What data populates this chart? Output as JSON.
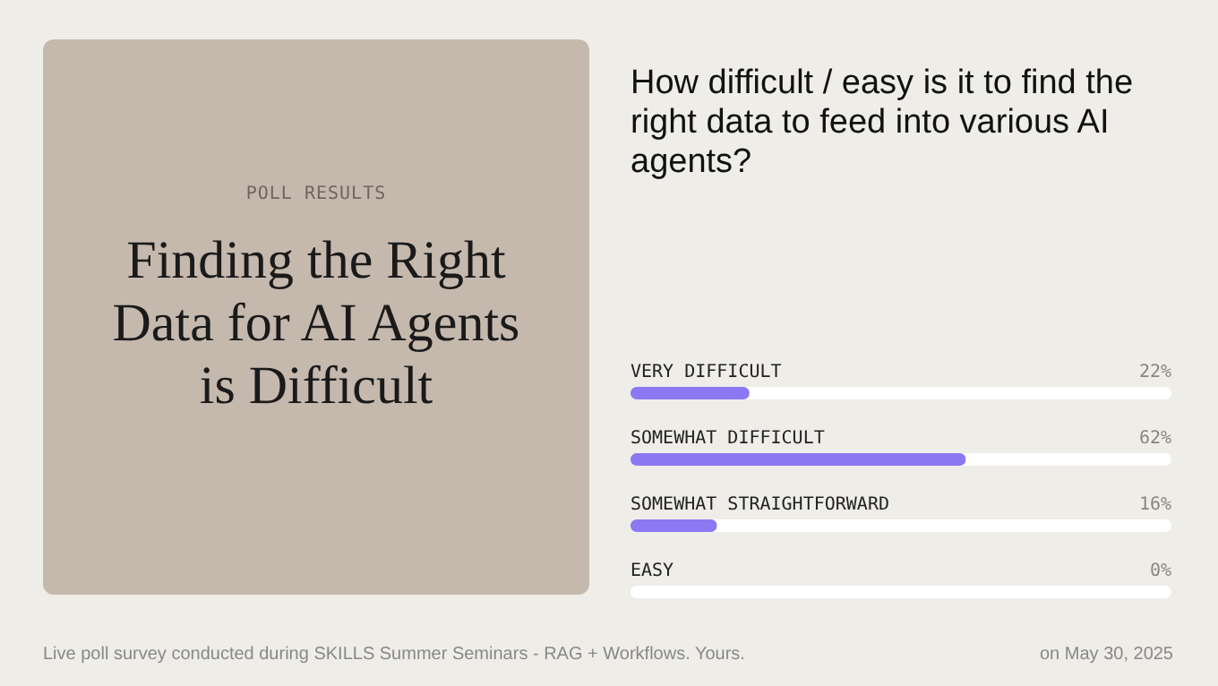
{
  "chart_data": {
    "type": "bar",
    "orientation": "horizontal",
    "title": "How difficult / easy is it to find the right data to feed into various AI agents?",
    "categories": [
      "VERY DIFFICULT",
      "SOMEWHAT DIFFICULT",
      "SOMEWHAT STRAIGHTFORWARD",
      "EASY"
    ],
    "values": [
      22,
      62,
      16,
      0
    ],
    "value_labels": [
      "22%",
      "62%",
      "16%",
      "0%"
    ],
    "color": "#8c78f2",
    "xlim": [
      0,
      100
    ],
    "tick_labels": false,
    "annotations": [
      "POLL RESULTS",
      "Finding the Right Data for AI Agents is Difficult",
      "Live poll survey conducted during SKILLS Summer Seminars - RAG + Workflows. Yours.",
      "on May 30, 2025"
    ]
  }
}
